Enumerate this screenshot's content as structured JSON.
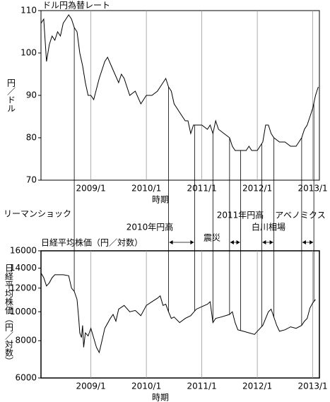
{
  "chart_data": [
    {
      "type": "line",
      "title": "ドル円為替レート",
      "ylabel": "円／ドル",
      "xlabel": "時期",
      "xlim": [
        2008.1,
        2013.12
      ],
      "xticks": [
        {
          "value": 2009,
          "label": "2009/1"
        },
        {
          "value": 2010,
          "label": "2010/1"
        },
        {
          "value": 2011,
          "label": "2011/1"
        },
        {
          "value": 2012,
          "label": "2012/1"
        },
        {
          "value": 2013,
          "label": "2013/1"
        }
      ],
      "ylim": [
        70,
        110
      ],
      "yticks": [
        70,
        80,
        90,
        100,
        110
      ],
      "log": false,
      "grid": "x",
      "x": [
        2008.1,
        2008.15,
        2008.2,
        2008.25,
        2008.3,
        2008.35,
        2008.4,
        2008.45,
        2008.5,
        2008.55,
        2008.6,
        2008.65,
        2008.7,
        2008.75,
        2008.8,
        2008.85,
        2008.9,
        2008.95,
        2009.0,
        2009.05,
        2009.15,
        2009.25,
        2009.3,
        2009.4,
        2009.5,
        2009.55,
        2009.6,
        2009.7,
        2009.8,
        2009.9,
        2010.0,
        2010.1,
        2010.2,
        2010.3,
        2010.35,
        2010.4,
        2010.45,
        2010.5,
        2010.6,
        2010.7,
        2010.75,
        2010.8,
        2010.85,
        2010.9,
        2011.0,
        2011.1,
        2011.15,
        2011.2,
        2011.25,
        2011.3,
        2011.4,
        2011.5,
        2011.55,
        2011.6,
        2011.7,
        2011.8,
        2011.85,
        2011.9,
        2012.0,
        2012.05,
        2012.1,
        2012.15,
        2012.2,
        2012.25,
        2012.3,
        2012.4,
        2012.5,
        2012.6,
        2012.7,
        2012.75,
        2012.8,
        2012.85,
        2012.9,
        2012.95,
        2013.0,
        2013.05,
        2013.1
      ],
      "series": [
        {
          "color": "#000000",
          "values": [
            107,
            108,
            98,
            102,
            104,
            103,
            105,
            104,
            107,
            108,
            109,
            108,
            106,
            105,
            100,
            97,
            93,
            90,
            90,
            89,
            94,
            98,
            99,
            96,
            93,
            95,
            94,
            90,
            91,
            88,
            90,
            90,
            91,
            93,
            94,
            92,
            91,
            88,
            86,
            84,
            84,
            81,
            83,
            83,
            83,
            82,
            83,
            81,
            84,
            82,
            81,
            80,
            78,
            77,
            77,
            77,
            78,
            77,
            77,
            78,
            79,
            83,
            83,
            81,
            80,
            79,
            79,
            78,
            78,
            79,
            80,
            82,
            83,
            85,
            87,
            90,
            92
          ]
        }
      ]
    },
    {
      "type": "line",
      "title": "日経平均株価（円／対数）",
      "ylabel": "日経平均株価（円／対数）",
      "xlabel": "時期",
      "xlim": [
        2008.1,
        2013.12
      ],
      "xticks": [
        {
          "value": 2009,
          "label": "2009/1"
        },
        {
          "value": 2010,
          "label": "2010/1"
        },
        {
          "value": 2011,
          "label": "2011/1"
        },
        {
          "value": 2012,
          "label": "2012/1"
        },
        {
          "value": 2013,
          "label": "2013/1"
        }
      ],
      "ylim": [
        6000,
        16000
      ],
      "yticks": [
        6000,
        8000,
        10000,
        12000,
        14000,
        16000
      ],
      "log": true,
      "grid": "x",
      "x": [
        2008.1,
        2008.15,
        2008.2,
        2008.25,
        2008.3,
        2008.35,
        2008.5,
        2008.6,
        2008.65,
        2008.7,
        2008.75,
        2008.78,
        2008.8,
        2008.83,
        2008.85,
        2008.87,
        2008.9,
        2008.95,
        2009.0,
        2009.1,
        2009.15,
        2009.2,
        2009.25,
        2009.35,
        2009.4,
        2009.45,
        2009.5,
        2009.6,
        2009.7,
        2009.8,
        2009.9,
        2010.0,
        2010.1,
        2010.2,
        2010.25,
        2010.3,
        2010.35,
        2010.4,
        2010.45,
        2010.5,
        2010.6,
        2010.7,
        2010.8,
        2010.9,
        2011.0,
        2011.1,
        2011.15,
        2011.2,
        2011.25,
        2011.35,
        2011.5,
        2011.55,
        2011.6,
        2011.65,
        2011.75,
        2011.85,
        2011.95,
        2012.0,
        2012.1,
        2012.2,
        2012.25,
        2012.35,
        2012.4,
        2012.5,
        2012.6,
        2012.7,
        2012.8,
        2012.85,
        2012.9,
        2012.95,
        2013.0,
        2013.05
      ],
      "series": [
        {
          "color": "#000000",
          "values": [
            13500,
            13000,
            12200,
            12500,
            13000,
            13300,
            13300,
            13200,
            12000,
            11700,
            11000,
            9500,
            8500,
            8200,
            9000,
            7600,
            8500,
            8300,
            8800,
            7600,
            7300,
            8000,
            8800,
            9500,
            9800,
            9300,
            10200,
            10500,
            10000,
            10100,
            9700,
            10500,
            10800,
            11100,
            11300,
            10500,
            10600,
            10000,
            9500,
            9600,
            9200,
            9500,
            9700,
            10200,
            10400,
            10600,
            10800,
            9200,
            9500,
            9600,
            9800,
            10000,
            9200,
            8700,
            8600,
            8500,
            8400,
            8600,
            9000,
            10000,
            10200,
            9000,
            8600,
            8700,
            8900,
            8800,
            9000,
            9300,
            9500,
            10300,
            10700,
            11000
          ]
        }
      ]
    }
  ],
  "events": [
    {
      "label": "リーマンショック",
      "x": [
        2008.7
      ]
    },
    {
      "label": "2010年円高",
      "x": [
        2010.4,
        2010.87
      ]
    },
    {
      "label": "震災",
      "x": [
        2011.2
      ]
    },
    {
      "label": "2011年円高",
      "x": [
        2011.5,
        2011.7
      ]
    },
    {
      "label": "白川相場",
      "x": [
        2012.08,
        2012.3
      ]
    },
    {
      "label": "アベノミクス",
      "x": [
        2012.8,
        2013.02
      ]
    }
  ]
}
